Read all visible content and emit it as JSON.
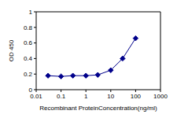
{
  "chart_data": {
    "type": "line",
    "x_label": "Recombinant ProteinConcentration(ng/ml)",
    "y_label": "OD 450",
    "x": [
      0.03,
      0.1,
      0.3,
      1,
      3,
      10,
      30,
      100
    ],
    "values": [
      0.18,
      0.17,
      0.18,
      0.18,
      0.19,
      0.25,
      0.4,
      0.66
    ],
    "color": "#00008b",
    "marker": "diamond",
    "line_style": "solid",
    "log": "x",
    "xlim": [
      0.01,
      1000
    ],
    "xticks": [
      0.01,
      0.1,
      1,
      10,
      100,
      1000
    ],
    "ylim": [
      0,
      1
    ],
    "yticks": [
      0,
      0.2,
      0.4,
      0.6,
      0.8,
      1
    ],
    "grid": false
  }
}
